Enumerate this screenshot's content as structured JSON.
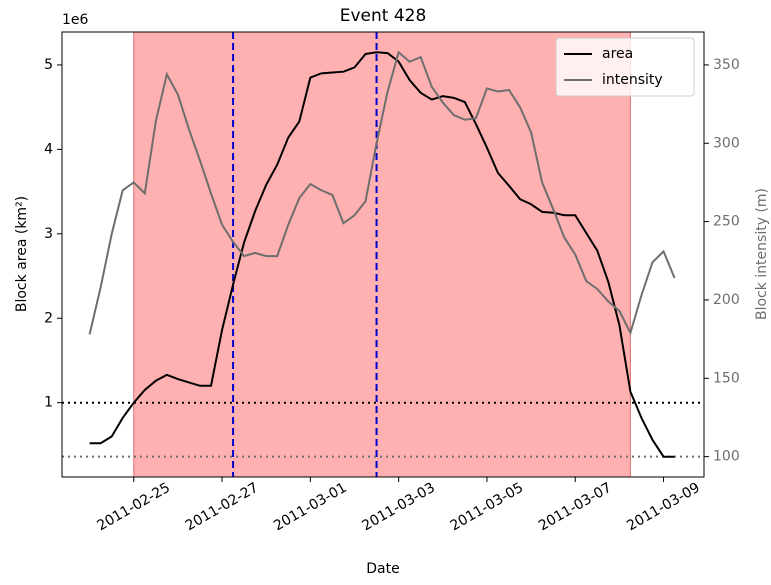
{
  "chart_data": {
    "type": "line",
    "title": "Event 428",
    "xlabel": "Date",
    "ylabel": "Block area (km²)",
    "y2label": "Block intensity (m)",
    "y_offset_label": "1e6",
    "x": [
      "2011-02-24 00:00",
      "2011-02-24 06:00",
      "2011-02-24 12:00",
      "2011-02-24 18:00",
      "2011-02-25 00:00",
      "2011-02-25 06:00",
      "2011-02-25 12:00",
      "2011-02-25 18:00",
      "2011-02-26 00:00",
      "2011-02-26 06:00",
      "2011-02-26 12:00",
      "2011-02-26 18:00",
      "2011-02-27 00:00",
      "2011-02-27 06:00",
      "2011-02-27 12:00",
      "2011-02-27 18:00",
      "2011-02-28 00:00",
      "2011-02-28 06:00",
      "2011-02-28 12:00",
      "2011-02-28 18:00",
      "2011-03-01 00:00",
      "2011-03-01 06:00",
      "2011-03-01 12:00",
      "2011-03-01 18:00",
      "2011-03-02 00:00",
      "2011-03-02 06:00",
      "2011-03-02 12:00",
      "2011-03-02 18:00",
      "2011-03-03 00:00",
      "2011-03-03 06:00",
      "2011-03-03 12:00",
      "2011-03-03 18:00",
      "2011-03-04 00:00",
      "2011-03-04 06:00",
      "2011-03-04 12:00",
      "2011-03-04 18:00",
      "2011-03-05 00:00",
      "2011-03-05 06:00",
      "2011-03-05 12:00",
      "2011-03-05 18:00",
      "2011-03-06 00:00",
      "2011-03-06 06:00",
      "2011-03-06 12:00",
      "2011-03-06 18:00",
      "2011-03-07 00:00",
      "2011-03-07 06:00",
      "2011-03-07 12:00",
      "2011-03-07 18:00",
      "2011-03-08 00:00",
      "2011-03-08 06:00",
      "2011-03-08 12:00",
      "2011-03-08 18:00",
      "2011-03-09 00:00",
      "2011-03-09 06:00"
    ],
    "series": [
      {
        "name": "area",
        "color": "#000000",
        "axis": "y",
        "values": [
          0.52,
          0.52,
          0.6,
          0.82,
          1.0,
          1.15,
          1.26,
          1.33,
          1.28,
          1.24,
          1.2,
          1.2,
          1.86,
          2.4,
          2.9,
          3.27,
          3.58,
          3.82,
          4.14,
          4.33,
          4.85,
          4.9,
          4.91,
          4.92,
          4.97,
          5.13,
          5.15,
          5.14,
          5.04,
          4.82,
          4.67,
          4.59,
          4.63,
          4.61,
          4.56,
          4.3,
          4.02,
          3.72,
          3.57,
          3.41,
          3.35,
          3.26,
          3.25,
          3.22,
          3.22,
          3.01,
          2.8,
          2.43,
          1.92,
          1.13,
          0.82,
          0.56,
          0.36,
          0.36
        ]
      },
      {
        "name": "intensity",
        "color": "#6e6e6e",
        "axis": "y2",
        "values": [
          178,
          208,
          242,
          270,
          275,
          268,
          314,
          344,
          331,
          309,
          289,
          268,
          248,
          237,
          228,
          230,
          228,
          228,
          248,
          265,
          274,
          270,
          267,
          249,
          254,
          263,
          300,
          333,
          358,
          352,
          355,
          336,
          326,
          318,
          315,
          316,
          335,
          333,
          334,
          323,
          307,
          275,
          258,
          240,
          229,
          212,
          207,
          199,
          193,
          179,
          203,
          224,
          231,
          214
        ]
      }
    ],
    "xlim": [
      "2011-02-23 09:00",
      "2011-03-09 22:00"
    ],
    "xticks": [
      "2011-02-25",
      "2011-02-27",
      "2011-03-01",
      "2011-03-03",
      "2011-03-05",
      "2011-03-07",
      "2011-03-09"
    ],
    "ylim": [
      0.12,
      5.39
    ],
    "yticks": [
      1,
      2,
      3,
      4,
      5
    ],
    "y2lim": [
      87,
      371
    ],
    "y2ticks": [
      100,
      150,
      200,
      250,
      300,
      350
    ],
    "spans": [
      {
        "x0": "2011-02-25 00:00",
        "x1": "2011-03-08 06:00",
        "color": "#ffb0b0"
      }
    ],
    "vlines": [
      {
        "x": "2011-02-27 06:00",
        "color": "#0000cc"
      },
      {
        "x": "2011-03-02 12:00",
        "color": "#0000cc"
      }
    ],
    "hlines": [
      {
        "y": 1,
        "axis": "y",
        "color": "#000000"
      },
      {
        "y": 100,
        "axis": "y2",
        "color": "#6e6e6e"
      }
    ],
    "legend": "upper right"
  }
}
